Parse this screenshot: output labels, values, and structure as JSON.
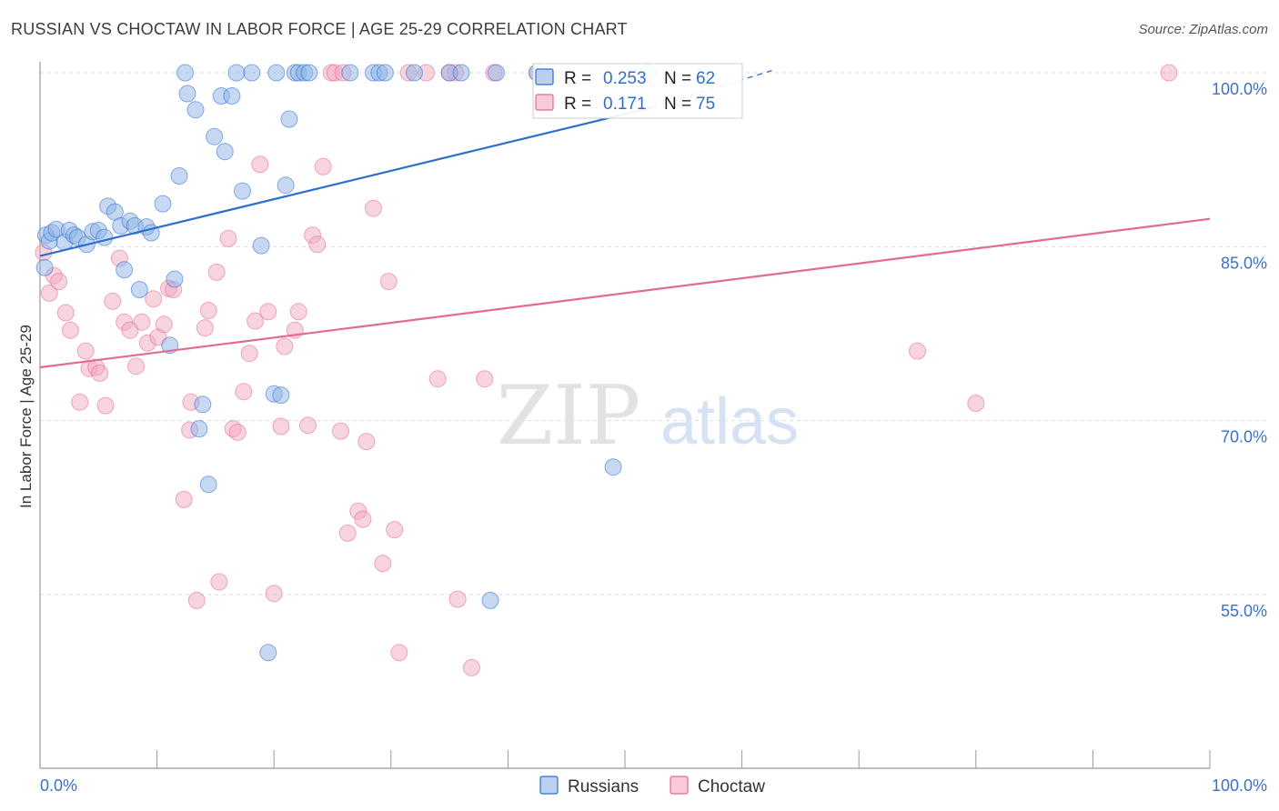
{
  "header": {
    "title": "RUSSIAN VS CHOCTAW IN LABOR FORCE | AGE 25-29 CORRELATION CHART",
    "source": "Source: ZipAtlas.com"
  },
  "colors": {
    "russians": "#8fb3e6",
    "russians_line": "#2d6fcd",
    "choctaw": "#f2a9c0",
    "choctaw_line": "#e26a94",
    "axis_text": "#3b72c4"
  },
  "chart_data": {
    "type": "scatter",
    "title": "RUSSIAN VS CHOCTAW IN LABOR FORCE | AGE 25-29 CORRELATION CHART",
    "xlabel": "",
    "ylabel": "In Labor Force | Age 25-29",
    "xlim": [
      0,
      100
    ],
    "ylim": [
      40,
      102.5
    ],
    "x_tick_labels": [
      "0.0%",
      "100.0%"
    ],
    "y_ticks": [
      55,
      70,
      85,
      100
    ],
    "y_tick_labels": [
      "55.0%",
      "70.0%",
      "85.0%",
      "100.0%"
    ],
    "grid": true,
    "watermark": "ZIPatlas",
    "legend_position": "top-center",
    "stats": [
      {
        "r_label": "R =",
        "r": "0.253",
        "n_label": "N =",
        "n": "62"
      },
      {
        "r_label": "R =",
        "r": "0.171",
        "n_label": "N =",
        "n": "75"
      }
    ],
    "series": [
      {
        "name": "Russians",
        "trend": [
          [
            0,
            84.2
          ],
          [
            52.3,
            97.0
          ],
          [
            62.6,
            100.2
          ]
        ],
        "points": [
          [
            0.5,
            86.0
          ],
          [
            0.8,
            85.5
          ],
          [
            1.0,
            86.2
          ],
          [
            1.4,
            86.5
          ],
          [
            2.1,
            85.4
          ],
          [
            2.5,
            86.4
          ],
          [
            2.9,
            86.0
          ],
          [
            3.2,
            85.8
          ],
          [
            4.0,
            85.2
          ],
          [
            4.5,
            86.3
          ],
          [
            5.0,
            86.4
          ],
          [
            5.5,
            85.8
          ],
          [
            5.8,
            88.5
          ],
          [
            6.4,
            88.0
          ],
          [
            6.9,
            86.8
          ],
          [
            7.2,
            83.0
          ],
          [
            7.7,
            87.2
          ],
          [
            8.1,
            86.8
          ],
          [
            8.5,
            81.3
          ],
          [
            9.1,
            86.7
          ],
          [
            9.5,
            86.2
          ],
          [
            10.5,
            88.7
          ],
          [
            11.1,
            76.5
          ],
          [
            11.5,
            82.2
          ],
          [
            11.9,
            91.1
          ],
          [
            12.4,
            100.0
          ],
          [
            12.6,
            98.2
          ],
          [
            13.3,
            96.8
          ],
          [
            13.6,
            69.3
          ],
          [
            13.9,
            71.4
          ],
          [
            14.4,
            64.5
          ],
          [
            14.9,
            94.5
          ],
          [
            15.5,
            98.0
          ],
          [
            15.8,
            93.2
          ],
          [
            16.4,
            98.0
          ],
          [
            16.8,
            100.0
          ],
          [
            17.3,
            89.8
          ],
          [
            18.1,
            100.0
          ],
          [
            18.9,
            85.1
          ],
          [
            19.5,
            50.0
          ],
          [
            20.0,
            72.3
          ],
          [
            20.2,
            100.0
          ],
          [
            20.6,
            72.2
          ],
          [
            21.0,
            90.3
          ],
          [
            21.3,
            96.0
          ],
          [
            21.8,
            100.0
          ],
          [
            22.1,
            100.0
          ],
          [
            22.6,
            100.0
          ],
          [
            23.0,
            100.0
          ],
          [
            26.5,
            100.0
          ],
          [
            28.5,
            100.0
          ],
          [
            29.0,
            100.0
          ],
          [
            29.5,
            100.0
          ],
          [
            32.0,
            100.0
          ],
          [
            35.0,
            100.0
          ],
          [
            36.0,
            100.0
          ],
          [
            38.5,
            54.5
          ],
          [
            39.0,
            100.0
          ],
          [
            42.5,
            100.0
          ],
          [
            49.0,
            66.0
          ],
          [
            52.0,
            100.0
          ],
          [
            0.4,
            83.2
          ]
        ],
        "r": 9
      },
      {
        "name": "Choctaw",
        "trend": [
          [
            0,
            74.6
          ],
          [
            100,
            87.4
          ]
        ],
        "points": [
          [
            0.3,
            84.5
          ],
          [
            0.8,
            81.0
          ],
          [
            1.2,
            82.5
          ],
          [
            1.6,
            82.0
          ],
          [
            2.2,
            79.3
          ],
          [
            2.6,
            77.8
          ],
          [
            3.4,
            71.6
          ],
          [
            3.9,
            76.0
          ],
          [
            4.2,
            74.5
          ],
          [
            4.8,
            74.6
          ],
          [
            5.1,
            74.1
          ],
          [
            5.6,
            71.3
          ],
          [
            6.2,
            80.3
          ],
          [
            6.8,
            84.0
          ],
          [
            7.2,
            78.5
          ],
          [
            7.7,
            77.8
          ],
          [
            8.2,
            74.7
          ],
          [
            8.7,
            78.5
          ],
          [
            9.2,
            76.7
          ],
          [
            9.7,
            80.5
          ],
          [
            10.1,
            77.2
          ],
          [
            10.6,
            78.3
          ],
          [
            11.0,
            81.4
          ],
          [
            11.4,
            81.3
          ],
          [
            12.3,
            63.2
          ],
          [
            12.8,
            69.2
          ],
          [
            12.9,
            71.6
          ],
          [
            13.4,
            54.5
          ],
          [
            14.1,
            78.0
          ],
          [
            14.4,
            79.5
          ],
          [
            15.1,
            82.8
          ],
          [
            15.3,
            56.1
          ],
          [
            16.1,
            85.7
          ],
          [
            16.5,
            69.3
          ],
          [
            16.9,
            69.0
          ],
          [
            17.4,
            72.5
          ],
          [
            17.9,
            75.8
          ],
          [
            18.4,
            78.6
          ],
          [
            18.8,
            92.1
          ],
          [
            19.5,
            79.4
          ],
          [
            20.0,
            55.1
          ],
          [
            20.6,
            69.5
          ],
          [
            20.9,
            76.4
          ],
          [
            21.8,
            77.8
          ],
          [
            22.1,
            79.4
          ],
          [
            22.9,
            69.6
          ],
          [
            23.3,
            86.0
          ],
          [
            23.7,
            85.2
          ],
          [
            24.2,
            91.9
          ],
          [
            24.9,
            100.0
          ],
          [
            25.2,
            100.0
          ],
          [
            25.7,
            69.1
          ],
          [
            25.9,
            100.0
          ],
          [
            26.3,
            60.3
          ],
          [
            27.2,
            62.2
          ],
          [
            27.6,
            61.5
          ],
          [
            27.9,
            68.2
          ],
          [
            28.5,
            88.3
          ],
          [
            29.3,
            57.7
          ],
          [
            29.8,
            82.0
          ],
          [
            30.3,
            60.6
          ],
          [
            30.7,
            50.0
          ],
          [
            31.5,
            100.0
          ],
          [
            33.0,
            100.0
          ],
          [
            34.0,
            73.6
          ],
          [
            35.0,
            100.0
          ],
          [
            35.5,
            100.0
          ],
          [
            35.7,
            54.6
          ],
          [
            36.9,
            48.7
          ],
          [
            38.0,
            73.6
          ],
          [
            38.8,
            100.0
          ],
          [
            42.5,
            100.0
          ],
          [
            75.0,
            76.0
          ],
          [
            80.0,
            71.5
          ],
          [
            96.5,
            100.0
          ]
        ],
        "r": 9
      }
    ]
  }
}
